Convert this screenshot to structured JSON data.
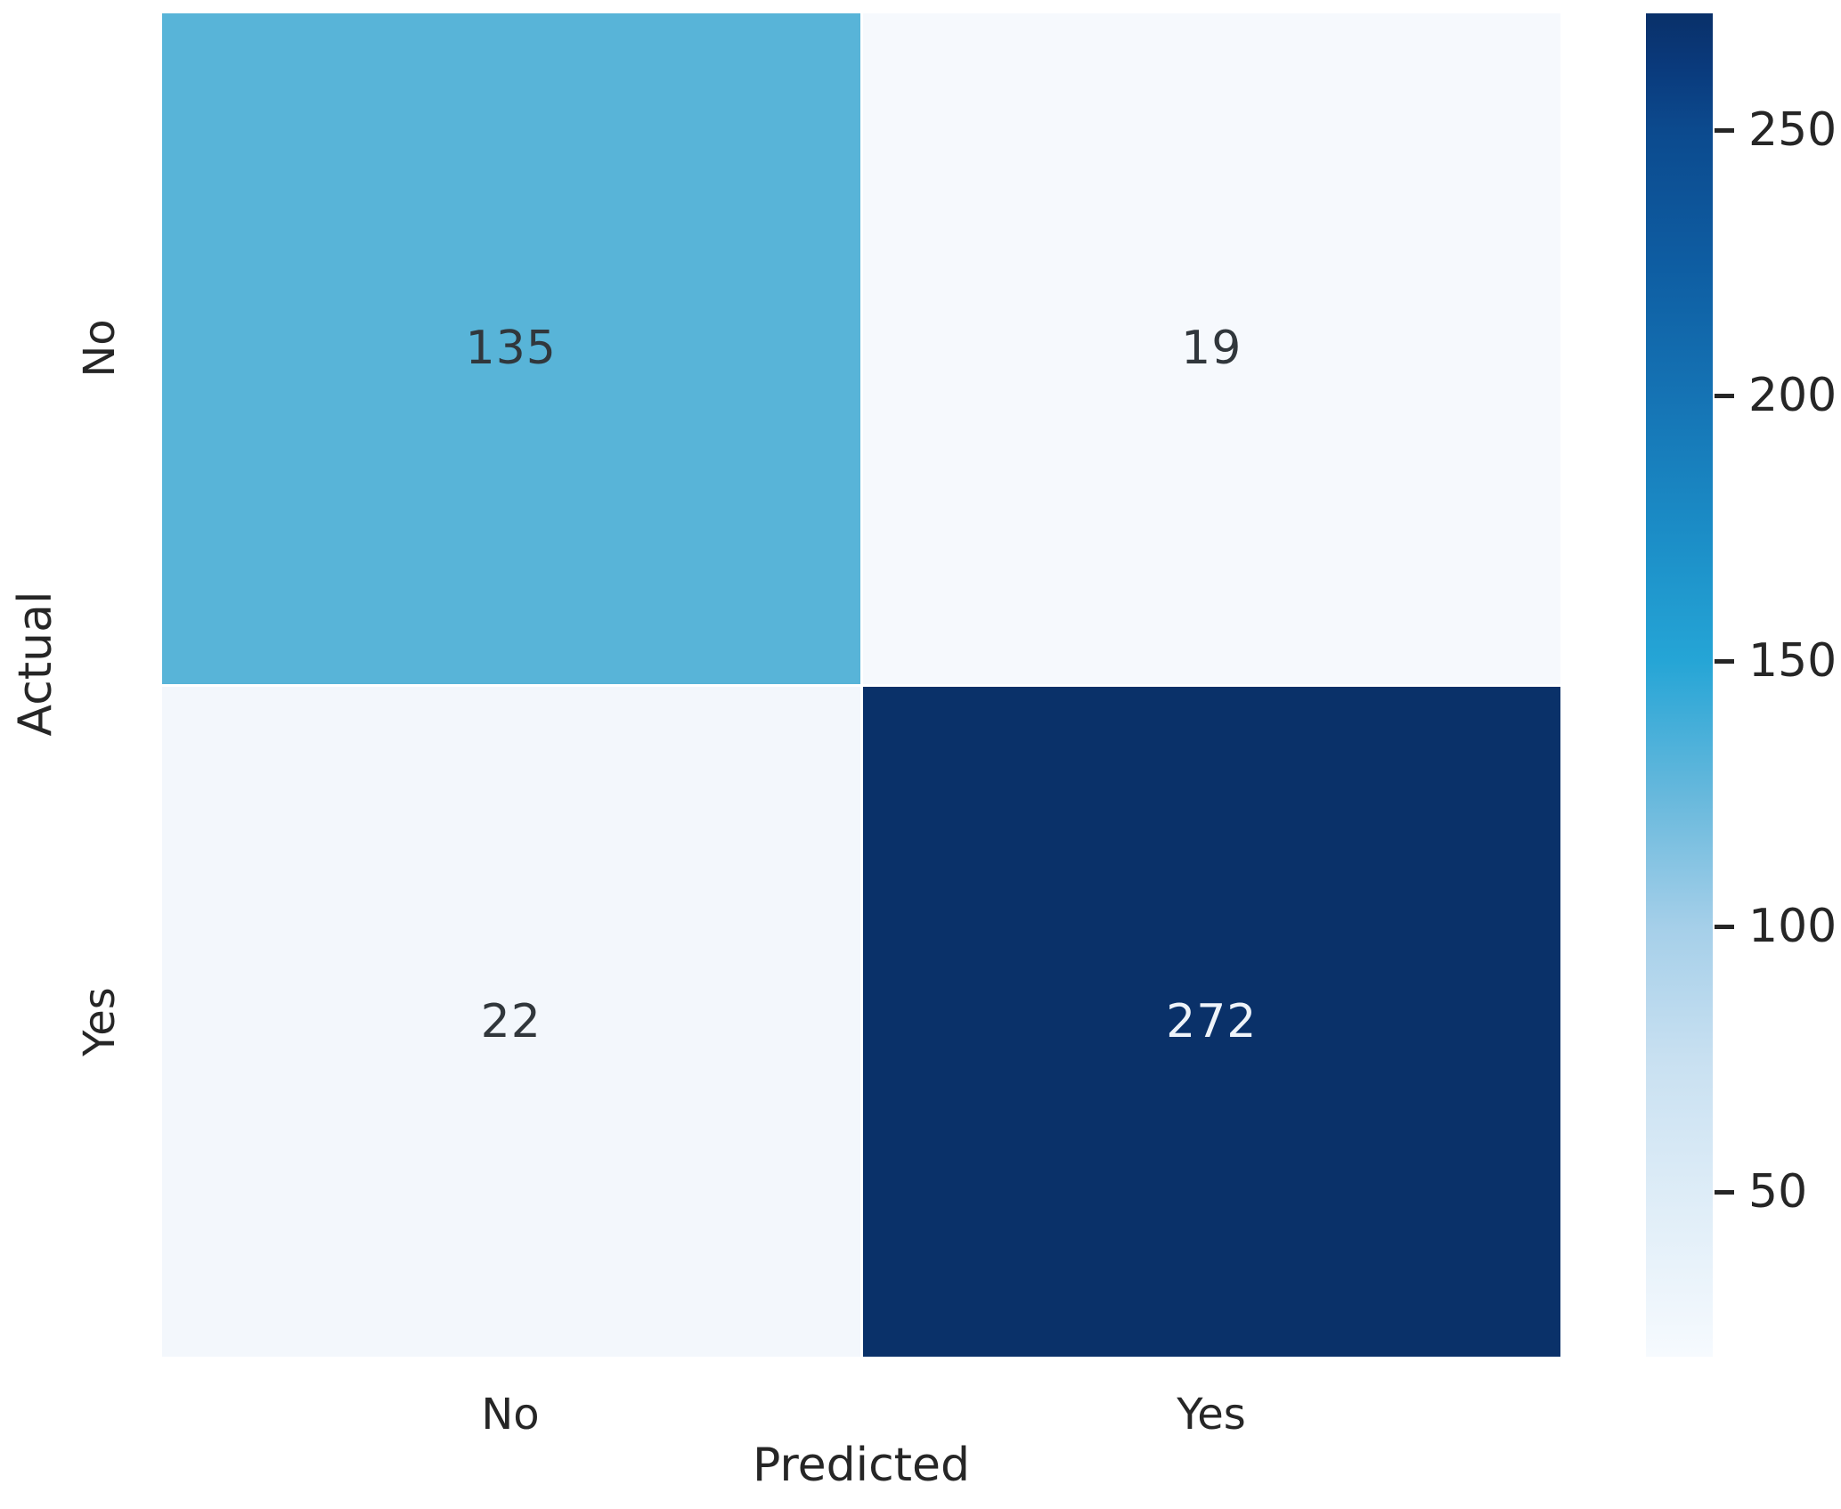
{
  "chart_data": {
    "type": "heatmap",
    "title": "",
    "xlabel": "Predicted",
    "ylabel": "Actual",
    "x_categories": [
      "No",
      "Yes"
    ],
    "y_categories": [
      "No",
      "Yes"
    ],
    "matrix": [
      [
        135,
        19
      ],
      [
        22,
        272
      ]
    ],
    "vmin": 19,
    "vmax": 272,
    "colormap": "Blues",
    "grid": false,
    "legend_position": "right-colorbar",
    "cells": [
      {
        "actual": "No",
        "predicted": "No",
        "value": "135",
        "bg": "#58b4d8",
        "fg": "#31373c"
      },
      {
        "actual": "No",
        "predicted": "Yes",
        "value": "19",
        "bg": "#f6f9fd",
        "fg": "#31373c"
      },
      {
        "actual": "Yes",
        "predicted": "No",
        "value": "22",
        "bg": "#f3f7fc",
        "fg": "#31373c"
      },
      {
        "actual": "Yes",
        "predicted": "Yes",
        "value": "272",
        "bg": "#0a3169",
        "fg": "#eef3f9"
      }
    ],
    "colorbar": {
      "ticks": [
        250,
        200,
        150,
        100,
        50
      ],
      "gradient_stops": [
        {
          "pos": 0,
          "color": "#093069"
        },
        {
          "pos": 4,
          "color": "#0a3a7c"
        },
        {
          "pos": 8.7,
          "color": "#0c4a8e"
        },
        {
          "pos": 18.6,
          "color": "#0e5da2"
        },
        {
          "pos": 28.5,
          "color": "#1573b4"
        },
        {
          "pos": 38.3,
          "color": "#1b8cc6"
        },
        {
          "pos": 48.2,
          "color": "#25a5d6"
        },
        {
          "pos": 58.1,
          "color": "#66b8dc"
        },
        {
          "pos": 68,
          "color": "#a5cfe9"
        },
        {
          "pos": 77.8,
          "color": "#c8e0f1"
        },
        {
          "pos": 87.7,
          "color": "#ddecf7"
        },
        {
          "pos": 100,
          "color": "#f6fafe"
        }
      ]
    },
    "text_color": "#262626"
  }
}
